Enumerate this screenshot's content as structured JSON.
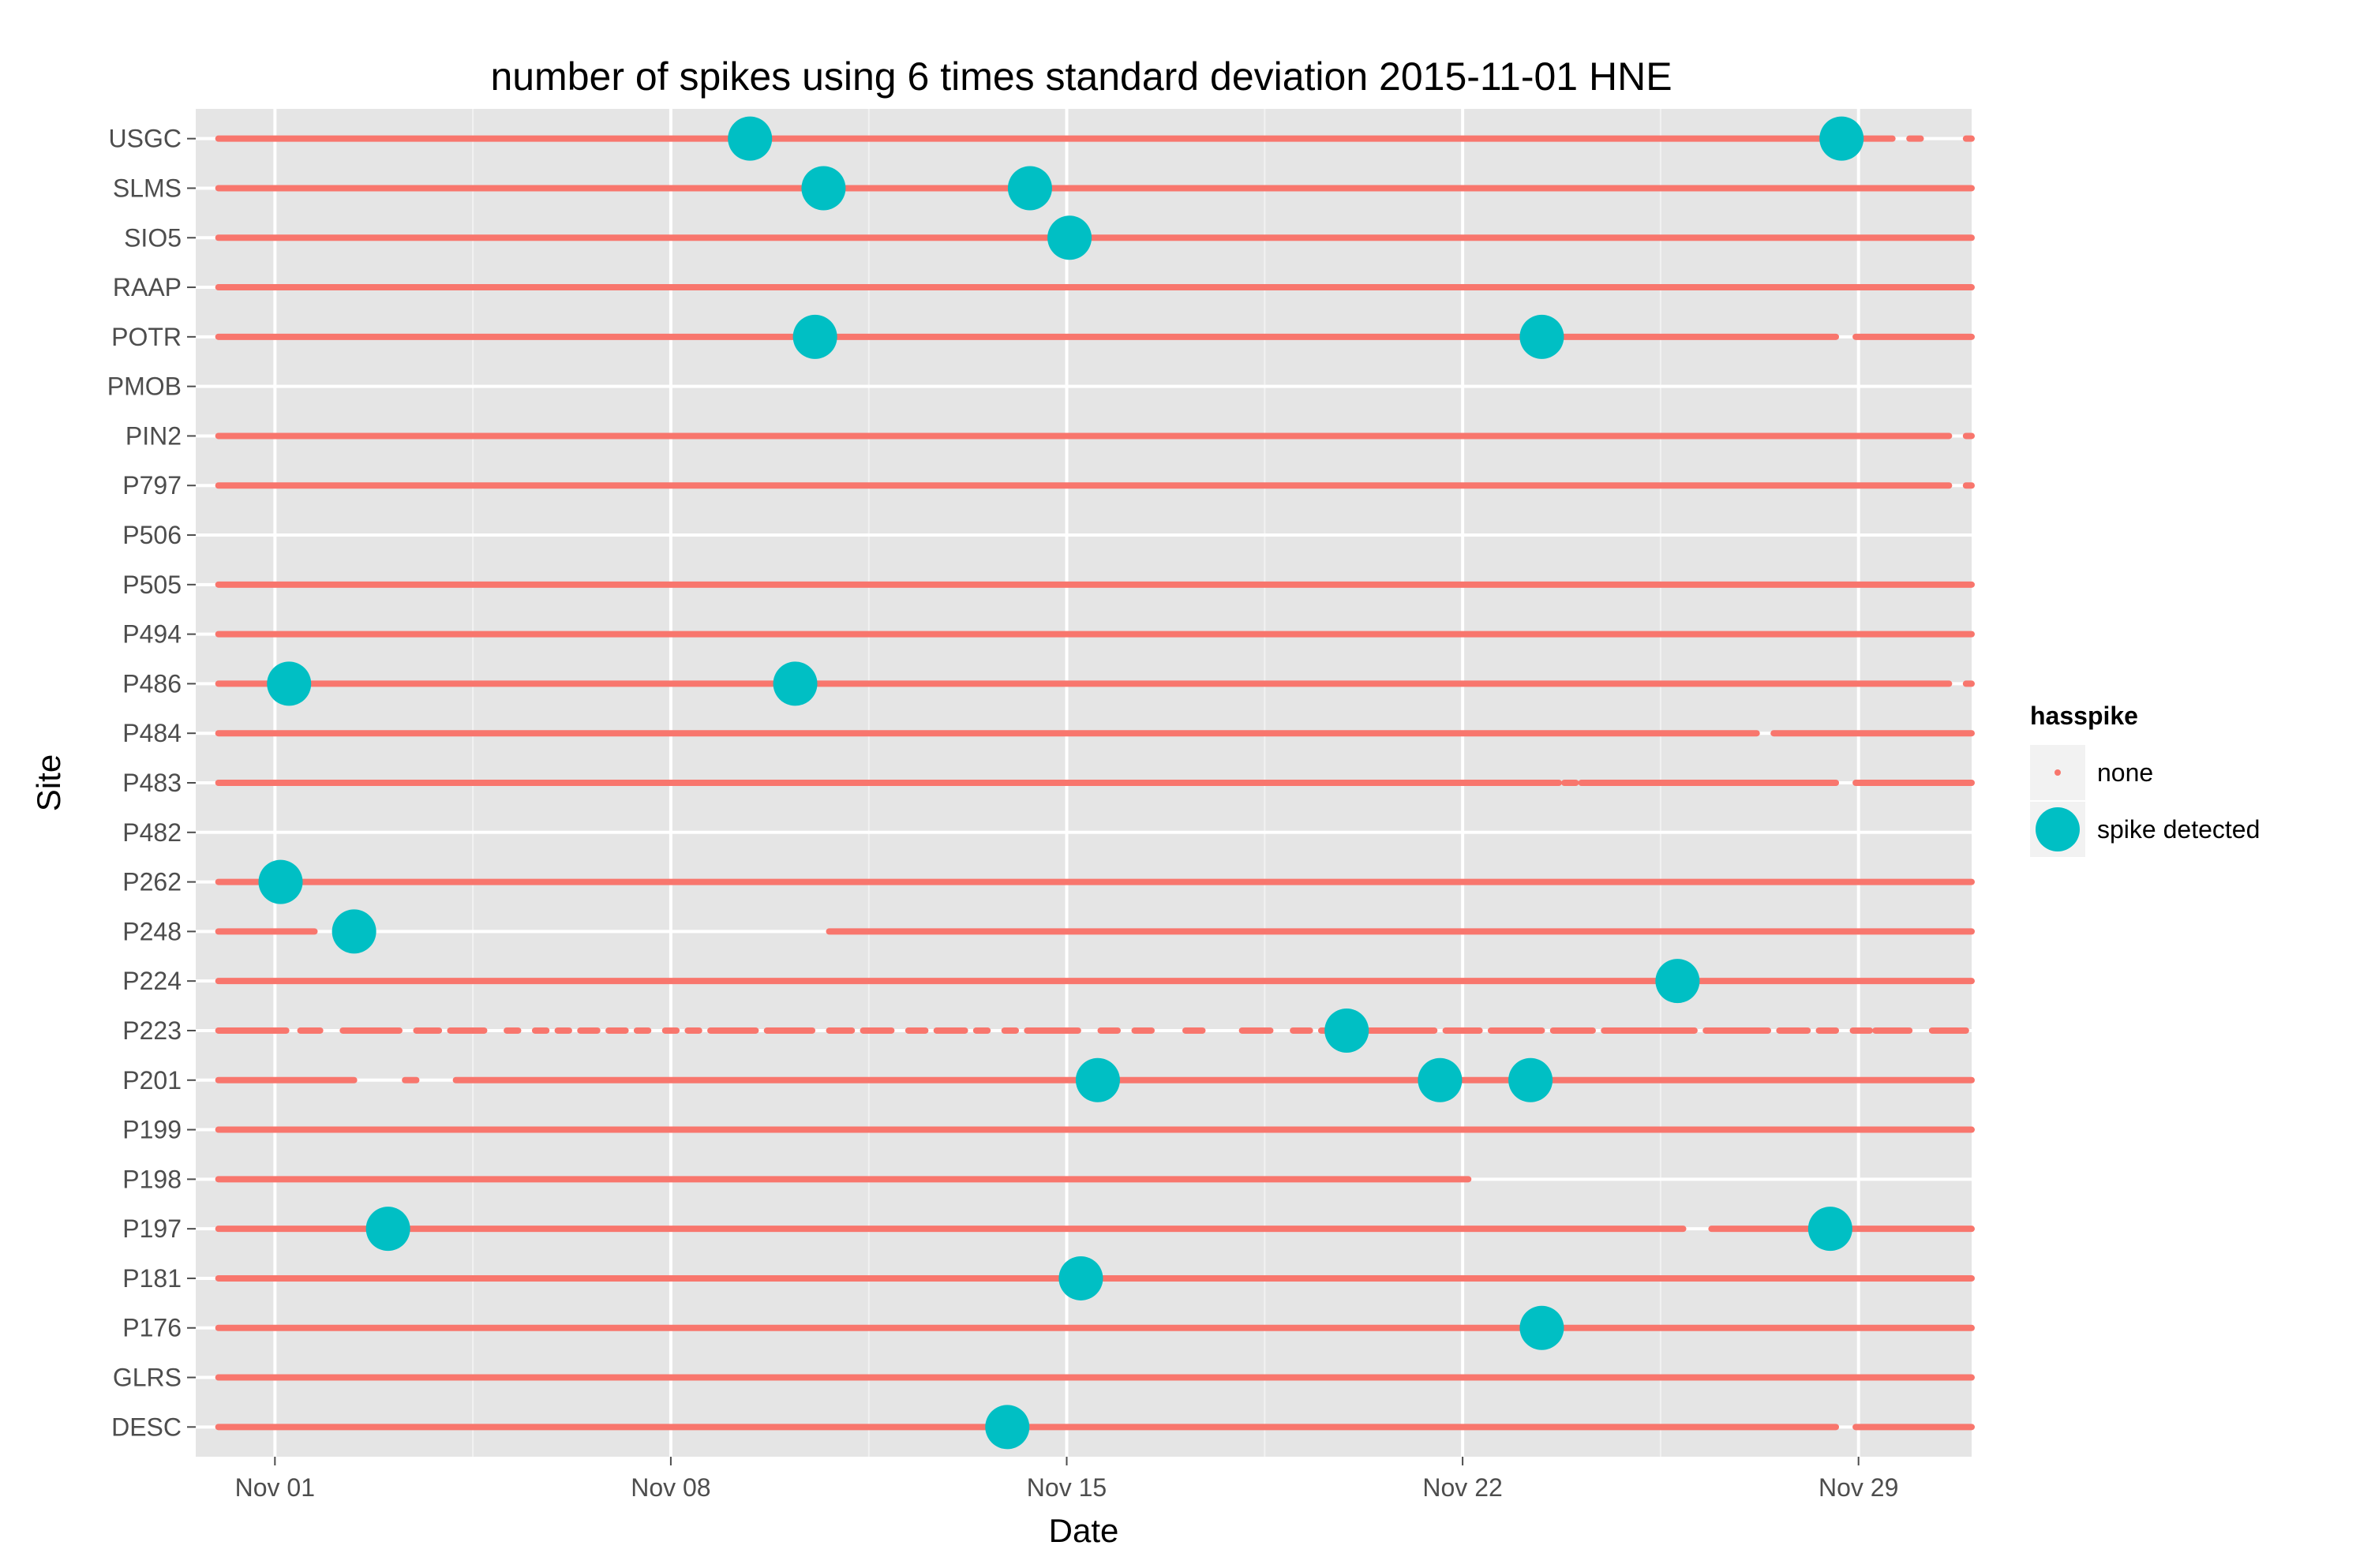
{
  "chart_data": {
    "type": "scatter",
    "title": "number of spikes using  6 times standard deviation 2015-11-01 HNE",
    "xlabel": "Date",
    "ylabel": "Site",
    "x_unit": "days since Nov 01 2015",
    "xlim": [
      -1.4,
      30.0
    ],
    "x_ticks": [
      {
        "label": "Nov 01",
        "value": 0
      },
      {
        "label": "Nov 08",
        "value": 7
      },
      {
        "label": "Nov 15",
        "value": 14
      },
      {
        "label": "Nov 22",
        "value": 21
      },
      {
        "label": "Nov 29",
        "value": 28
      }
    ],
    "grid": true,
    "legend": {
      "title": "hasspike",
      "position": "right",
      "entries": [
        {
          "label": "none",
          "color": "#F8766D"
        },
        {
          "label": "spike detected",
          "color": "#00BFC4"
        }
      ]
    },
    "sites": [
      "USGC",
      "SLMS",
      "SIO5",
      "RAAP",
      "POTR",
      "PMOB",
      "PIN2",
      "P797",
      "P506",
      "P505",
      "P494",
      "P486",
      "P484",
      "P483",
      "P482",
      "P262",
      "P248",
      "P224",
      "P223",
      "P201",
      "P199",
      "P198",
      "P197",
      "P181",
      "P176",
      "GLRS",
      "DESC"
    ],
    "series": [
      {
        "name": "none",
        "segments": [
          {
            "site": "USGC",
            "ranges": [
              [
                -1.0,
                28.6
              ],
              [
                28.9,
                29.1
              ],
              [
                29.9,
                30.0
              ]
            ]
          },
          {
            "site": "SLMS",
            "ranges": [
              [
                -1.0,
                30.0
              ]
            ]
          },
          {
            "site": "SIO5",
            "ranges": [
              [
                -1.0,
                30.0
              ]
            ]
          },
          {
            "site": "RAAP",
            "ranges": [
              [
                -1.0,
                30.0
              ]
            ]
          },
          {
            "site": "POTR",
            "ranges": [
              [
                -1.0,
                27.6
              ],
              [
                27.95,
                30.0
              ]
            ]
          },
          {
            "site": "PIN2",
            "ranges": [
              [
                -1.0,
                29.6
              ],
              [
                29.9,
                30.0
              ]
            ]
          },
          {
            "site": "P797",
            "ranges": [
              [
                -1.0,
                29.6
              ],
              [
                29.9,
                30.0
              ]
            ]
          },
          {
            "site": "P505",
            "ranges": [
              [
                -1.0,
                30.0
              ]
            ]
          },
          {
            "site": "P494",
            "ranges": [
              [
                -1.0,
                30.0
              ]
            ]
          },
          {
            "site": "P486",
            "ranges": [
              [
                -1.0,
                29.6
              ],
              [
                29.9,
                30.0
              ]
            ]
          },
          {
            "site": "P484",
            "ranges": [
              [
                -1.0,
                26.2
              ],
              [
                26.5,
                30.0
              ]
            ]
          },
          {
            "site": "P483",
            "ranges": [
              [
                -1.0,
                22.7
              ],
              [
                22.8,
                23.0
              ],
              [
                23.1,
                27.6
              ],
              [
                27.95,
                30.0
              ]
            ]
          },
          {
            "site": "P262",
            "ranges": [
              [
                -1.0,
                30.0
              ]
            ]
          },
          {
            "site": "P248",
            "ranges": [
              [
                -1.0,
                0.7
              ],
              [
                9.8,
                30.0
              ]
            ]
          },
          {
            "site": "P224",
            "ranges": [
              [
                -1.0,
                30.0
              ]
            ]
          },
          {
            "site": "P223",
            "ranges": [
              [
                -1.0,
                0.2
              ],
              [
                0.45,
                0.8
              ],
              [
                1.2,
                2.2
              ],
              [
                2.5,
                2.9
              ],
              [
                3.1,
                3.7
              ],
              [
                4.1,
                4.3
              ],
              [
                4.6,
                4.8
              ],
              [
                5.0,
                5.2
              ],
              [
                5.4,
                5.7
              ],
              [
                5.9,
                6.2
              ],
              [
                6.4,
                6.6
              ],
              [
                6.9,
                7.1
              ],
              [
                7.3,
                7.5
              ],
              [
                7.7,
                8.5
              ],
              [
                8.7,
                9.5
              ],
              [
                9.8,
                10.2
              ],
              [
                10.4,
                10.9
              ],
              [
                11.2,
                11.5
              ],
              [
                11.7,
                12.2
              ],
              [
                12.4,
                12.6
              ],
              [
                12.9,
                13.1
              ],
              [
                13.3,
                14.2
              ],
              [
                14.6,
                14.9
              ],
              [
                15.2,
                15.5
              ],
              [
                16.1,
                16.4
              ],
              [
                17.1,
                17.6
              ],
              [
                18.0,
                18.3
              ],
              [
                18.5,
                19.1
              ],
              [
                19.3,
                20.5
              ],
              [
                20.7,
                21.3
              ],
              [
                21.5,
                22.4
              ],
              [
                22.6,
                23.3
              ],
              [
                23.5,
                25.1
              ],
              [
                25.3,
                26.4
              ],
              [
                26.6,
                27.1
              ],
              [
                27.3,
                27.6
              ],
              [
                27.9,
                28.2
              ],
              [
                28.3,
                28.9
              ],
              [
                29.3,
                29.9
              ]
            ]
          },
          {
            "site": "P201",
            "ranges": [
              [
                -1.0,
                1.4
              ],
              [
                2.3,
                2.5
              ],
              [
                3.2,
                30.0
              ]
            ]
          },
          {
            "site": "P199",
            "ranges": [
              [
                -1.0,
                30.0
              ]
            ]
          },
          {
            "site": "P198",
            "ranges": [
              [
                -1.0,
                21.1
              ]
            ]
          },
          {
            "site": "P197",
            "ranges": [
              [
                -1.0,
                24.9
              ],
              [
                25.4,
                30.0
              ]
            ]
          },
          {
            "site": "P181",
            "ranges": [
              [
                -1.0,
                30.0
              ]
            ]
          },
          {
            "site": "P176",
            "ranges": [
              [
                -1.0,
                30.0
              ]
            ]
          },
          {
            "site": "GLRS",
            "ranges": [
              [
                -1.0,
                30.0
              ]
            ]
          },
          {
            "site": "DESC",
            "ranges": [
              [
                -1.0,
                27.6
              ],
              [
                27.95,
                30.0
              ]
            ]
          }
        ]
      },
      {
        "name": "spike detected",
        "points": [
          {
            "site": "USGC",
            "x": 8.4
          },
          {
            "site": "USGC",
            "x": 27.7
          },
          {
            "site": "SLMS",
            "x": 9.7
          },
          {
            "site": "SLMS",
            "x": 13.35
          },
          {
            "site": "SIO5",
            "x": 14.05
          },
          {
            "site": "POTR",
            "x": 9.55
          },
          {
            "site": "POTR",
            "x": 22.4
          },
          {
            "site": "P486",
            "x": 0.25
          },
          {
            "site": "P486",
            "x": 9.2
          },
          {
            "site": "P262",
            "x": 0.1
          },
          {
            "site": "P248",
            "x": 1.4
          },
          {
            "site": "P224",
            "x": 24.8
          },
          {
            "site": "P223",
            "x": 18.95
          },
          {
            "site": "P201",
            "x": 14.55
          },
          {
            "site": "P201",
            "x": 20.6
          },
          {
            "site": "P201",
            "x": 22.2
          },
          {
            "site": "P197",
            "x": 2.0
          },
          {
            "site": "P197",
            "x": 27.5
          },
          {
            "site": "P181",
            "x": 14.25
          },
          {
            "site": "P176",
            "x": 22.4
          },
          {
            "site": "DESC",
            "x": 12.95
          }
        ]
      }
    ]
  }
}
